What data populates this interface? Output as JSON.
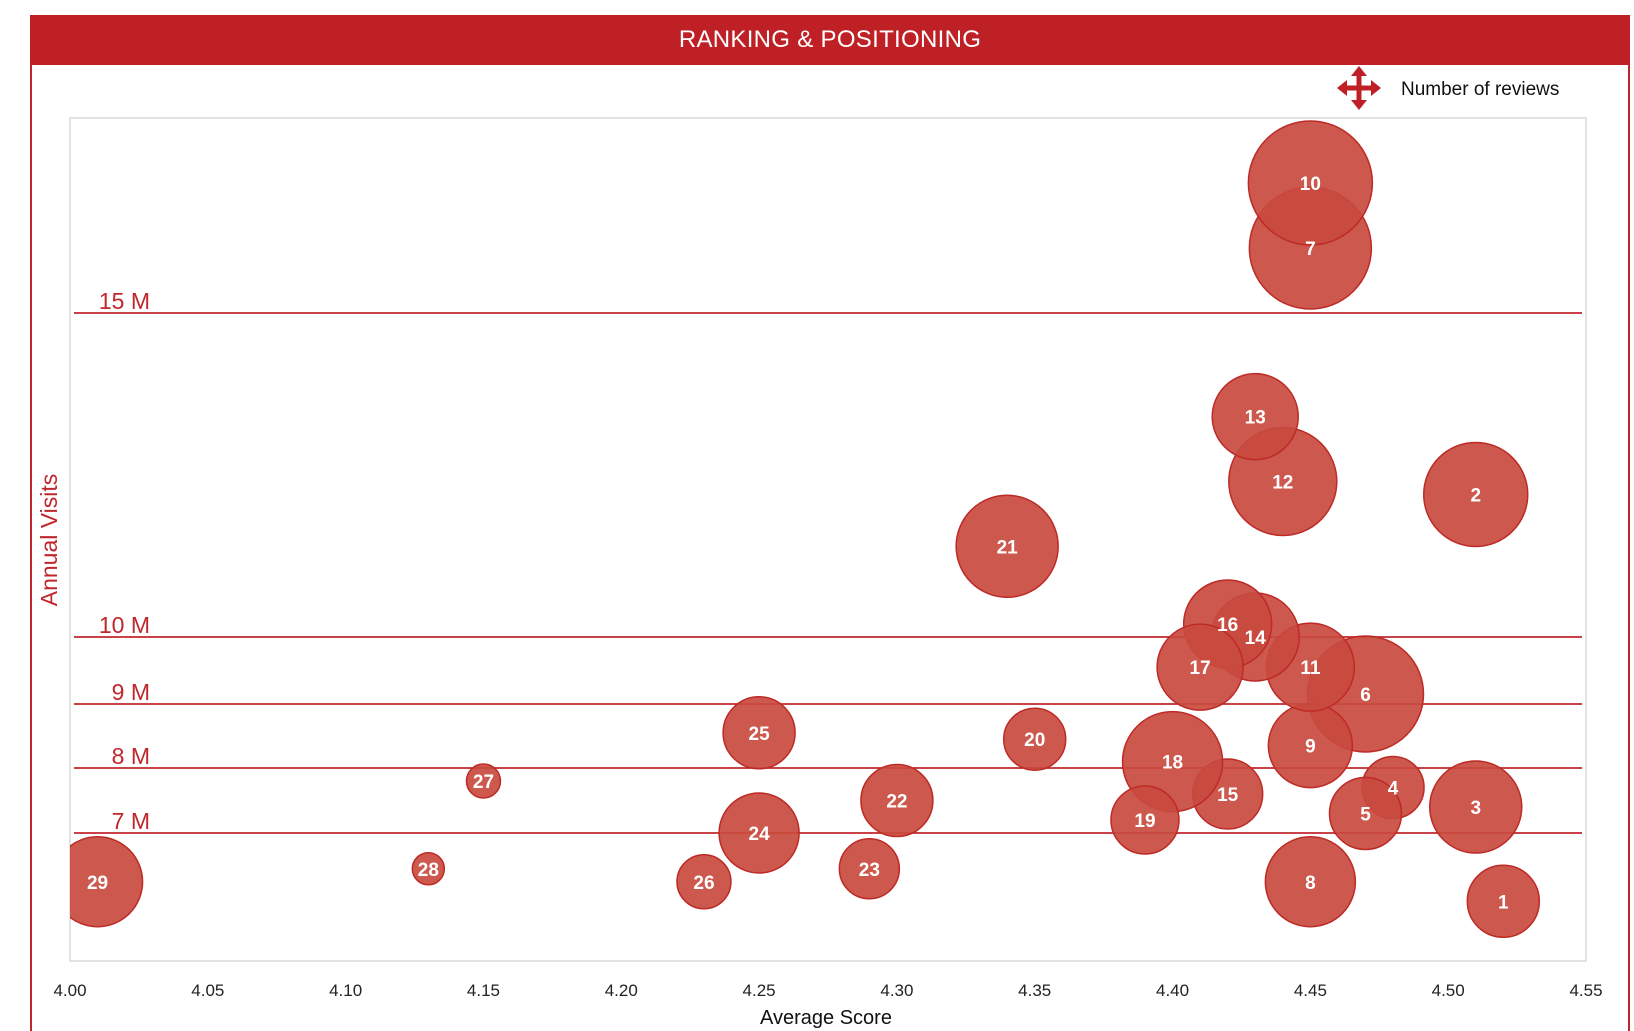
{
  "title": "RANKING & POSITIONING",
  "colors": {
    "title_bg": "#be2026",
    "bubble": "#c94a3e",
    "bubble_stroke": "#be2a26",
    "accent": "#c0272d",
    "axis_text": "#222222"
  },
  "legend": {
    "icon": "move-arrows-icon",
    "label": "Number of reviews"
  },
  "chart_data": {
    "type": "scatter",
    "variant": "bubble",
    "title": "RANKING & POSITIONING",
    "xlabel": "Average Score",
    "ylabel": "Annual Visits",
    "xlim": [
      4.0,
      4.55
    ],
    "x_ticks": [
      "4.00",
      "4.05",
      "4.10",
      "4.15",
      "4.20",
      "4.25",
      "4.30",
      "4.35",
      "4.40",
      "4.45",
      "4.50",
      "4.55"
    ],
    "y_reference_lines": [
      {
        "label": "7 M",
        "value": 7000000
      },
      {
        "label": "8 M",
        "value": 8000000
      },
      {
        "label": "9 M",
        "value": 9000000
      },
      {
        "label": "10 M",
        "value": 10000000
      },
      {
        "label": "15 M",
        "value": 15000000
      }
    ],
    "grid": false,
    "legend_position": "top-right",
    "size_meaning": "Number of reviews",
    "points": [
      {
        "label": "1",
        "x": 4.52,
        "y": 5.95,
        "size": 36
      },
      {
        "label": "2",
        "x": 4.51,
        "y": 12.2,
        "size": 52
      },
      {
        "label": "3",
        "x": 4.51,
        "y": 7.4,
        "size": 46
      },
      {
        "label": "4",
        "x": 4.48,
        "y": 7.7,
        "size": 31
      },
      {
        "label": "5",
        "x": 4.47,
        "y": 7.3,
        "size": 36
      },
      {
        "label": "6",
        "x": 4.47,
        "y": 9.15,
        "size": 58
      },
      {
        "label": "7",
        "x": 4.45,
        "y": 16.0,
        "size": 61
      },
      {
        "label": "8",
        "x": 4.45,
        "y": 6.25,
        "size": 45
      },
      {
        "label": "9",
        "x": 4.45,
        "y": 8.35,
        "size": 42
      },
      {
        "label": "10",
        "x": 4.45,
        "y": 17.0,
        "size": 62
      },
      {
        "label": "11",
        "x": 4.45,
        "y": 9.55,
        "size": 44
      },
      {
        "label": "12",
        "x": 4.44,
        "y": 12.4,
        "size": 54
      },
      {
        "label": "13",
        "x": 4.43,
        "y": 13.4,
        "size": 43
      },
      {
        "label": "14",
        "x": 4.43,
        "y": 10.0,
        "size": 44
      },
      {
        "label": "15",
        "x": 4.42,
        "y": 7.6,
        "size": 35
      },
      {
        "label": "16",
        "x": 4.42,
        "y": 10.2,
        "size": 44
      },
      {
        "label": "17",
        "x": 4.41,
        "y": 9.55,
        "size": 43
      },
      {
        "label": "18",
        "x": 4.4,
        "y": 8.1,
        "size": 50
      },
      {
        "label": "19",
        "x": 4.39,
        "y": 7.2,
        "size": 34
      },
      {
        "label": "20",
        "x": 4.35,
        "y": 8.45,
        "size": 31
      },
      {
        "label": "21",
        "x": 4.34,
        "y": 11.4,
        "size": 51
      },
      {
        "label": "22",
        "x": 4.3,
        "y": 7.5,
        "size": 36
      },
      {
        "label": "23",
        "x": 4.29,
        "y": 6.45,
        "size": 30
      },
      {
        "label": "24",
        "x": 4.25,
        "y": 7.0,
        "size": 40
      },
      {
        "label": "25",
        "x": 4.25,
        "y": 8.55,
        "size": 36
      },
      {
        "label": "26",
        "x": 4.23,
        "y": 6.25,
        "size": 27
      },
      {
        "label": "27",
        "x": 4.15,
        "y": 7.8,
        "size": 17
      },
      {
        "label": "28",
        "x": 4.13,
        "y": 6.45,
        "size": 16
      },
      {
        "label": "29",
        "x": 4.01,
        "y": 6.25,
        "size": 45
      }
    ]
  }
}
